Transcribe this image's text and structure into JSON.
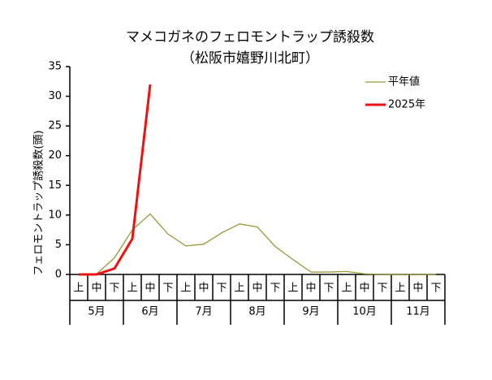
{
  "chart_data": {
    "type": "line",
    "title": "マメコガネのフェロモントラップ誘殺数",
    "subtitle": "（松阪市嬉野川北町）",
    "y_label": "フェロモントラップ誘殺数(頭)",
    "categories": [
      "上",
      "中",
      "下",
      "上",
      "中",
      "下",
      "上",
      "中",
      "下",
      "上",
      "中",
      "下",
      "上",
      "中",
      "下",
      "上",
      "中",
      "下",
      "上",
      "中",
      "下"
    ],
    "month_groups": [
      "5月",
      "6月",
      "7月",
      "8月",
      "9月",
      "10月",
      "11月"
    ],
    "series": [
      {
        "name": "平年値",
        "color": "#99993a",
        "values": [
          0,
          0.1,
          2.8,
          7.5,
          10.2,
          6.8,
          4.8,
          5.1,
          7,
          8.5,
          8,
          4.7,
          2.5,
          0.4,
          0.4,
          0.5,
          0.1,
          0,
          0,
          0,
          0
        ]
      },
      {
        "name": "2025年",
        "color": "#ee1111",
        "values": [
          0,
          0,
          1,
          6,
          32,
          null,
          null,
          null,
          null,
          null,
          null,
          null,
          null,
          null,
          null,
          null,
          null,
          null,
          null,
          null,
          null
        ]
      }
    ],
    "ylim": [
      0,
      35
    ],
    "yticks": [
      0,
      5,
      10,
      15,
      20,
      25,
      30,
      35
    ],
    "grid": false,
    "legend": "upper right"
  }
}
